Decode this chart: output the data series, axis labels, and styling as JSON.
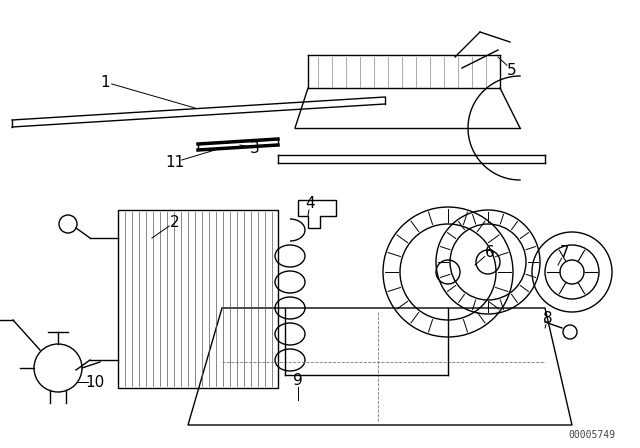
{
  "background_color": "#ffffff",
  "watermark": "00005749",
  "line_color": "#000000",
  "line_width": 1.0,
  "font_size": 11
}
